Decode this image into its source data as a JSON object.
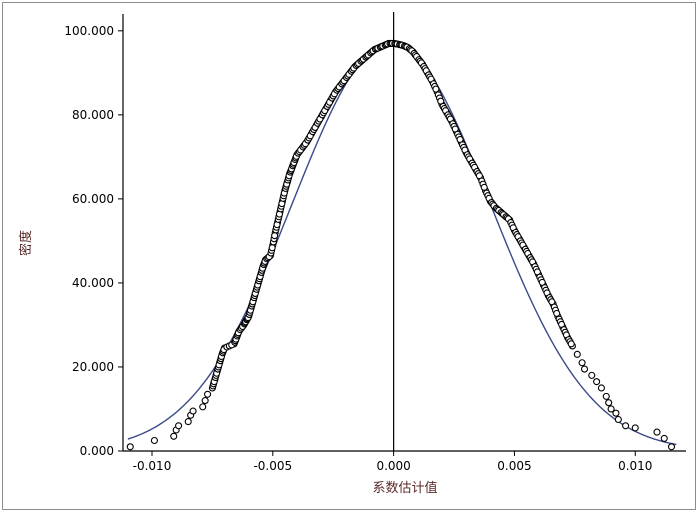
{
  "chart_data": {
    "type": "scatter",
    "title": "",
    "xlabel": "系数估计值",
    "ylabel": "密度",
    "xlim": [
      -0.0112,
      0.0121
    ],
    "ylim": [
      0,
      104
    ],
    "grid": false,
    "x_ticks": [
      -0.01,
      -0.005,
      0.0,
      0.005,
      0.01
    ],
    "x_tick_labels": [
      "-0.010",
      "-0.005",
      "0.000",
      "0.005",
      "0.010"
    ],
    "y_ticks": [
      0,
      20,
      40,
      60,
      80,
      100
    ],
    "y_tick_labels": [
      "0.000",
      "20.000",
      "40.000",
      "60.000",
      "80.000",
      "100.000"
    ],
    "reference_line_x": 0.0,
    "colors": {
      "curve": "#3b4a8a",
      "points": "#000000",
      "axis": "#000000"
    },
    "series": [
      {
        "type": "line",
        "description_kind": "fitted-normal-density",
        "mean": -0.0001,
        "sd": 0.0041,
        "peak": 97
      },
      {
        "type": "scatter",
        "points": [
          [
            -0.0109,
            1.0
          ],
          [
            -0.0099,
            2.5
          ],
          [
            -0.0091,
            3.5
          ],
          [
            -0.009,
            5.0
          ],
          [
            -0.0089,
            6.0
          ],
          [
            -0.0085,
            7.0
          ],
          [
            -0.0084,
            8.5
          ],
          [
            -0.0083,
            9.5
          ],
          [
            -0.0079,
            10.5
          ],
          [
            -0.0078,
            12.0
          ],
          [
            -0.0077,
            13.5
          ],
          [
            -0.0075,
            15.0
          ],
          [
            -0.0074,
            17.0
          ],
          [
            -0.0073,
            19.0
          ],
          [
            -0.0072,
            21.0
          ],
          [
            -0.0071,
            23.0
          ],
          [
            -0.007,
            24.5
          ],
          [
            -0.0066,
            25.5
          ],
          [
            -0.0065,
            27.0
          ],
          [
            -0.0064,
            28.5
          ],
          [
            -0.0062,
            30.0
          ],
          [
            -0.0061,
            31.0
          ],
          [
            -0.006,
            32.0
          ],
          [
            -0.0059,
            34.0
          ],
          [
            -0.0058,
            36.0
          ],
          [
            -0.0057,
            38.0
          ],
          [
            -0.0056,
            40.0
          ],
          [
            -0.0055,
            42.0
          ],
          [
            -0.0054,
            44.0
          ],
          [
            -0.0053,
            45.5
          ],
          [
            -0.0051,
            46.5
          ],
          [
            -0.005,
            49.0
          ],
          [
            -0.0049,
            52.0
          ],
          [
            -0.0048,
            54.5
          ],
          [
            -0.0047,
            57.0
          ],
          [
            -0.0046,
            59.5
          ],
          [
            -0.0045,
            62.0
          ],
          [
            -0.0044,
            64.0
          ],
          [
            -0.0043,
            66.0
          ],
          [
            -0.0042,
            67.5
          ],
          [
            -0.0041,
            69.0
          ],
          [
            -0.004,
            70.5
          ],
          [
            -0.0038,
            72.0
          ],
          [
            -0.0036,
            73.5
          ],
          [
            -0.0034,
            75.5
          ],
          [
            -0.0032,
            77.5
          ],
          [
            -0.003,
            79.5
          ],
          [
            -0.0028,
            81.5
          ],
          [
            -0.0026,
            83.5
          ],
          [
            -0.0024,
            85.5
          ],
          [
            -0.0022,
            87.0
          ],
          [
            -0.002,
            88.5
          ],
          [
            -0.0018,
            90.0
          ],
          [
            -0.0016,
            91.5
          ],
          [
            -0.0014,
            92.5
          ],
          [
            -0.0012,
            93.5
          ],
          [
            -0.001,
            94.5
          ],
          [
            -0.0008,
            95.5
          ],
          [
            -0.0006,
            96.0
          ],
          [
            -0.0004,
            96.5
          ],
          [
            -0.0002,
            97.0
          ],
          [
            0.0,
            97.0
          ],
          [
            0.0002,
            96.8
          ],
          [
            0.0004,
            96.5
          ],
          [
            0.0006,
            96.0
          ],
          [
            0.0008,
            95.0
          ],
          [
            0.001,
            93.5
          ],
          [
            0.0012,
            92.0
          ],
          [
            0.0014,
            90.0
          ],
          [
            0.0016,
            88.0
          ],
          [
            0.0018,
            85.5
          ],
          [
            0.002,
            82.5
          ],
          [
            0.0022,
            80.5
          ],
          [
            0.0024,
            78.5
          ],
          [
            0.0026,
            76.0
          ],
          [
            0.0028,
            73.5
          ],
          [
            0.003,
            71.0
          ],
          [
            0.0032,
            69.0
          ],
          [
            0.0034,
            67.0
          ],
          [
            0.0036,
            65.0
          ],
          [
            0.0038,
            62.0
          ],
          [
            0.004,
            59.5
          ],
          [
            0.0042,
            58.0
          ],
          [
            0.0044,
            57.0
          ],
          [
            0.0046,
            56.0
          ],
          [
            0.0048,
            55.0
          ],
          [
            0.005,
            52.5
          ],
          [
            0.0052,
            50.5
          ],
          [
            0.0054,
            48.5
          ],
          [
            0.0056,
            46.5
          ],
          [
            0.0058,
            44.5
          ],
          [
            0.006,
            42.0
          ],
          [
            0.0062,
            39.5
          ],
          [
            0.0064,
            37.0
          ],
          [
            0.0066,
            35.0
          ],
          [
            0.0068,
            32.0
          ],
          [
            0.007,
            29.5
          ],
          [
            0.0072,
            27.0
          ],
          [
            0.0074,
            25.0
          ],
          [
            0.0076,
            23.0
          ],
          [
            0.0078,
            21.0
          ],
          [
            0.0079,
            19.5
          ],
          [
            0.0082,
            18.0
          ],
          [
            0.0084,
            16.5
          ],
          [
            0.0086,
            15.0
          ],
          [
            0.0088,
            13.0
          ],
          [
            0.0089,
            11.5
          ],
          [
            0.009,
            10.0
          ],
          [
            0.0092,
            9.0
          ],
          [
            0.0093,
            7.5
          ],
          [
            0.0096,
            6.0
          ],
          [
            0.01,
            5.5
          ],
          [
            0.0109,
            4.5
          ],
          [
            0.0112,
            3.0
          ],
          [
            0.0115,
            1.0
          ]
        ]
      }
    ]
  }
}
